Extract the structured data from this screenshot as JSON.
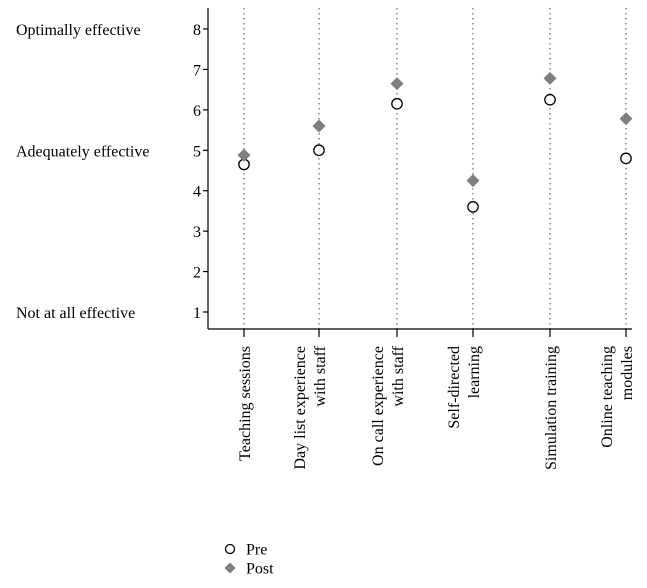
{
  "chart_data": {
    "type": "scatter",
    "categories": [
      [
        "Teaching sessions"
      ],
      [
        "Day list experience",
        "with staff"
      ],
      [
        "On call experience",
        "with staff"
      ],
      [
        "Self-directed",
        "learning"
      ],
      [
        "Simulation training"
      ],
      [
        "Online teaching",
        "modules"
      ]
    ],
    "yticks": [
      "1",
      "2",
      "3",
      "4",
      "5",
      "6",
      "7",
      "8"
    ],
    "ylim": [
      0.6,
      8.5
    ],
    "scale_labels": [
      {
        "value": 8,
        "text": "Optimally effective"
      },
      {
        "value": 5,
        "text": "Adequately effective"
      },
      {
        "value": 1,
        "text": "Not at all effective"
      }
    ],
    "series": [
      {
        "name": "Pre",
        "marker": "open-circle",
        "color": "#000000",
        "values": [
          4.65,
          5.0,
          6.15,
          3.6,
          6.25,
          4.8
        ]
      },
      {
        "name": "Post",
        "marker": "filled-diamond",
        "color": "#7f7f7f",
        "values": [
          4.88,
          5.6,
          6.65,
          4.25,
          6.78,
          5.78
        ]
      }
    ],
    "grid": "vertical-dotted",
    "legend_position": "bottom-left"
  }
}
